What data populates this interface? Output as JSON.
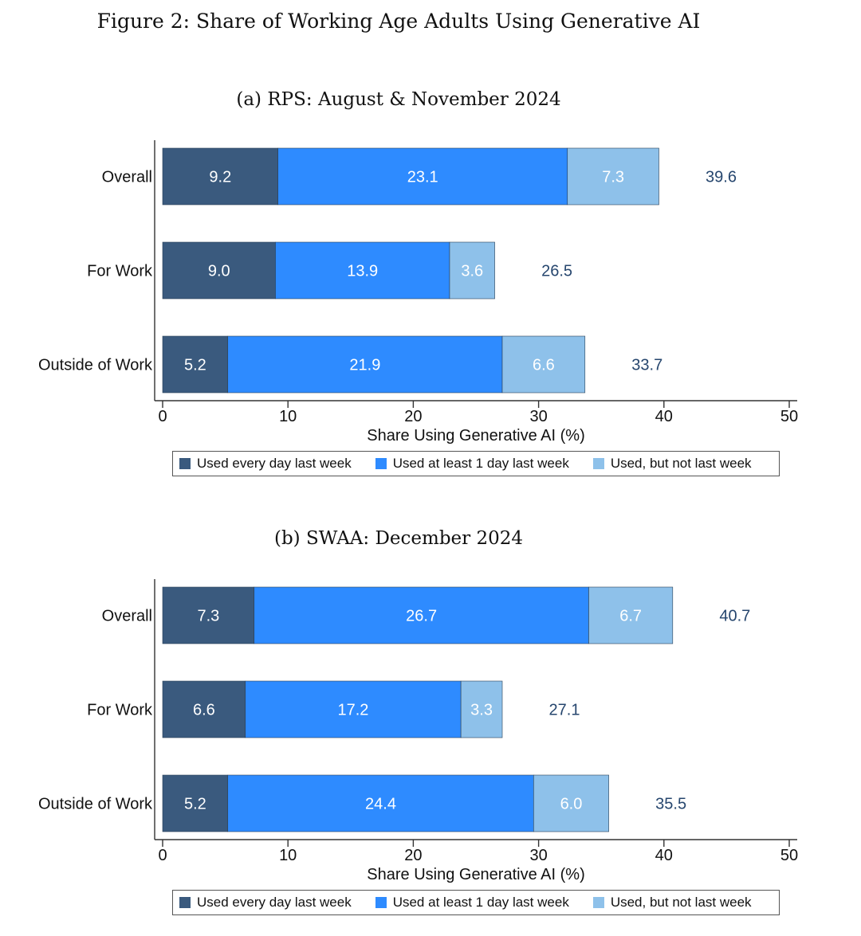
{
  "figure_title": "Figure 2: Share of Working Age Adults Using Generative AI",
  "colors": {
    "daily": "#3a5a7e",
    "weekly": "#2e8bff",
    "notlast": "#8ec1ea",
    "total_label": "#26466e",
    "axis": "#333333"
  },
  "legend": [
    {
      "key": "daily",
      "label": "Used every day last week"
    },
    {
      "key": "weekly",
      "label": "Used at least 1 day last week"
    },
    {
      "key": "notlast",
      "label": "Used, but not last week"
    }
  ],
  "chart_data": [
    {
      "type": "bar",
      "orientation": "horizontal",
      "stacked": true,
      "title": "(a) RPS: August & November 2024",
      "xlabel": "Share Using Generative AI (%)",
      "xlim": [
        0,
        50
      ],
      "xticks": [
        0,
        10,
        20,
        30,
        40,
        50
      ],
      "categories": [
        "Overall",
        "For Work",
        "Outside of Work"
      ],
      "series": [
        {
          "name": "Used every day last week",
          "key": "daily",
          "values": [
            9.2,
            9.0,
            5.2
          ],
          "labels": [
            "9.2",
            "9.0",
            "5.2"
          ]
        },
        {
          "name": "Used at least 1 day last week",
          "key": "weekly",
          "values": [
            23.1,
            13.9,
            21.9
          ],
          "labels": [
            "23.1",
            "13.9",
            "21.9"
          ]
        },
        {
          "name": "Used, but not last week",
          "key": "notlast",
          "values": [
            7.3,
            3.6,
            6.6
          ],
          "labels": [
            "7.3",
            "3.6",
            "6.6"
          ]
        }
      ],
      "totals": [
        39.6,
        26.5,
        33.7
      ],
      "total_labels": [
        "39.6",
        "26.5",
        "33.7"
      ]
    },
    {
      "type": "bar",
      "orientation": "horizontal",
      "stacked": true,
      "title": "(b) SWAA: December 2024",
      "xlabel": "Share Using Generative AI (%)",
      "xlim": [
        0,
        50
      ],
      "xticks": [
        0,
        10,
        20,
        30,
        40,
        50
      ],
      "categories": [
        "Overall",
        "For Work",
        "Outside of Work"
      ],
      "series": [
        {
          "name": "Used every day last week",
          "key": "daily",
          "values": [
            7.3,
            6.6,
            5.2
          ],
          "labels": [
            "7.3",
            "6.6",
            "5.2"
          ]
        },
        {
          "name": "Used at least 1 day last week",
          "key": "weekly",
          "values": [
            26.7,
            17.2,
            24.4
          ],
          "labels": [
            "26.7",
            "17.2",
            "24.4"
          ]
        },
        {
          "name": "Used, but not last week",
          "key": "notlast",
          "values": [
            6.7,
            3.3,
            6.0
          ],
          "labels": [
            "6.7",
            "3.3",
            "6.0"
          ]
        }
      ],
      "totals": [
        40.7,
        27.1,
        35.5
      ],
      "total_labels": [
        "40.7",
        "27.1",
        "35.5"
      ]
    }
  ]
}
